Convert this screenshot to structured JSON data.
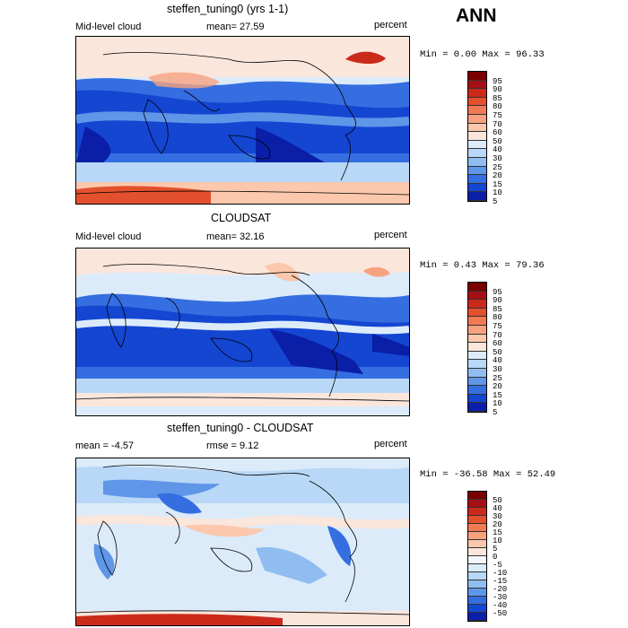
{
  "season": "ANN",
  "panels": [
    {
      "title": "steffen_tuning0 (yrs 1-1)",
      "left": "Mid-level cloud",
      "center": "mean=  27.59",
      "units": "percent",
      "minmax": "Min =   0.00 Max =  96.33",
      "colorbar": [
        "95",
        "90",
        "85",
        "80",
        "75",
        "70",
        "60",
        "50",
        "40",
        "30",
        "25",
        "20",
        "15",
        "10",
        "5"
      ],
      "colors": [
        "#7a0000",
        "#a50f15",
        "#cb2a1a",
        "#e3502d",
        "#f07a55",
        "#f7a27f",
        "#fbc8ad",
        "#fbe6dc",
        "#dcebfa",
        "#b9d7f6",
        "#8fbdf0",
        "#5f96e8",
        "#356ee0",
        "#1446d2",
        "#0a1ea8"
      ]
    },
    {
      "title": "CLOUDSAT",
      "left": "Mid-level cloud",
      "center": "mean=  32.16",
      "units": "percent",
      "minmax": "Min =   0.43 Max =  79.36",
      "colorbar": [
        "95",
        "90",
        "85",
        "80",
        "75",
        "70",
        "60",
        "50",
        "40",
        "30",
        "25",
        "20",
        "15",
        "10",
        "5"
      ],
      "colors": [
        "#7a0000",
        "#a50f15",
        "#cb2a1a",
        "#e3502d",
        "#f07a55",
        "#f7a27f",
        "#fbc8ad",
        "#fbe6dc",
        "#dcebfa",
        "#b9d7f6",
        "#8fbdf0",
        "#5f96e8",
        "#356ee0",
        "#1446d2",
        "#0a1ea8"
      ]
    },
    {
      "title": "steffen_tuning0 - CLOUDSAT",
      "left": "mean =  -4.57",
      "center": "rmse =   9.12",
      "units": "percent",
      "minmax": "Min = -36.58 Max =  52.49",
      "colorbar": [
        "50",
        "40",
        "30",
        "20",
        "15",
        "10",
        "5",
        "0",
        "-5",
        "-10",
        "-15",
        "-20",
        "-30",
        "-40",
        "-50"
      ],
      "colors": [
        "#7a0000",
        "#a50f15",
        "#cb2a1a",
        "#e3502d",
        "#f07a55",
        "#f7a27f",
        "#fbc8ad",
        "#fbe6dc",
        "#f3f7fd",
        "#dcebfa",
        "#b9d7f6",
        "#8fbdf0",
        "#5f96e8",
        "#356ee0",
        "#1446d2",
        "#0a1ea8"
      ]
    }
  ]
}
